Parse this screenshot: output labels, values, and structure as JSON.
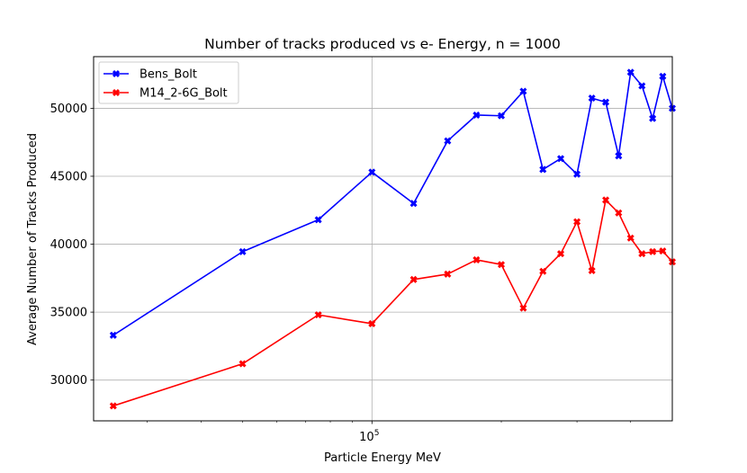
{
  "chart_data": {
    "type": "line",
    "title": "Number of tracks produced vs e- Energy, n = 1000",
    "xlabel": "Particle Energy MeV",
    "ylabel": "Average Number of Tracks Produced",
    "xscale": "log",
    "xlim": [
      22500,
      500000
    ],
    "ylim": [
      27000,
      53800
    ],
    "grid": true,
    "legend_position": "top-left",
    "x_major_ticks": [
      {
        "value": 100000,
        "base": "10",
        "exp": "5"
      }
    ],
    "x_minor_ticks": [
      30000,
      40000,
      50000,
      60000,
      70000,
      80000,
      90000,
      200000,
      300000,
      400000
    ],
    "y_ticks": [
      30000,
      35000,
      40000,
      45000,
      50000
    ],
    "y_tick_labels": [
      "30000",
      "35000",
      "40000",
      "45000",
      "50000"
    ],
    "x": [
      25000,
      50000,
      75000,
      100000,
      125000,
      150000,
      175000,
      200000,
      225000,
      250000,
      275000,
      300000,
      325000,
      350000,
      375000,
      400000,
      425000,
      450000,
      475000,
      500000
    ],
    "series": [
      {
        "name": "Bens_Bolt",
        "color": "#0000ff",
        "marker": "X",
        "values": [
          33300,
          39450,
          41800,
          45300,
          43000,
          47600,
          49500,
          49450,
          51250,
          45500,
          46300,
          45150,
          50750,
          50450,
          46500,
          52650,
          51650,
          49250,
          52350,
          50000
        ]
      },
      {
        "name": "M14_2-6G_Bolt",
        "color": "#ff0000",
        "marker": "X",
        "values": [
          28100,
          31200,
          34800,
          34150,
          37400,
          37800,
          38850,
          38500,
          35300,
          38000,
          39300,
          41650,
          38050,
          43250,
          42300,
          40450,
          39300,
          39450,
          39500,
          38700
        ]
      }
    ]
  }
}
